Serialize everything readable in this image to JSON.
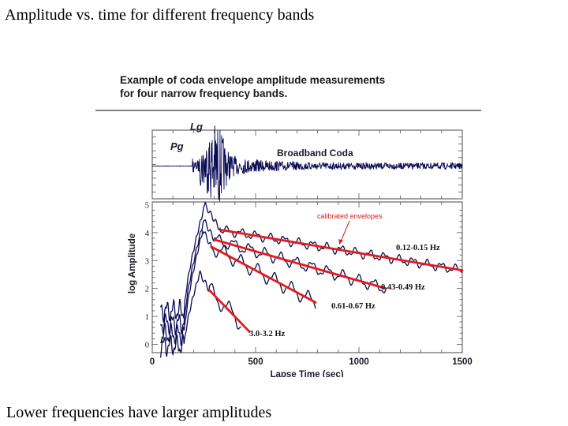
{
  "slide": {
    "title": "Amplitude vs. time for different frequency bands",
    "caption": "Lower frequencies have larger amplitudes"
  },
  "figure": {
    "title_line1": "Example of coda envelope amplitude measurements",
    "title_line2": "for four narrow frequency bands."
  },
  "chart_data": [
    {
      "type": "line",
      "panel": "top",
      "title": "Broadband Coda",
      "phase_labels": [
        "Lg",
        "Pg"
      ],
      "phase_arrivals_s": {
        "Pg": 200,
        "Lg": 290
      },
      "xlim": [
        0,
        1500
      ],
      "grid": false
    },
    {
      "type": "line",
      "panel": "bottom",
      "xlabel": "Lapse Time (sec)",
      "ylabel": "log Amplitude",
      "xlim": [
        0,
        1500
      ],
      "ylim": [
        -0.3,
        5.1
      ],
      "xticks": [
        "0",
        "500",
        "1000",
        "1500"
      ],
      "yticks": [
        "0",
        "1",
        "2",
        "3",
        "4",
        "5"
      ],
      "grid": false,
      "annotation": "calibrated envelopes",
      "colors": {
        "envelope": "#0b0b55",
        "fit": "#e31b1b",
        "annotation": "#d11f1f",
        "axes": "#555555"
      },
      "series": [
        {
          "name": "0.12-0.15 Hz",
          "peak": {
            "t": 255,
            "v": 5.0
          },
          "fit": {
            "t": [
              330,
              1500
            ],
            "v": [
              4.1,
              2.65
            ]
          },
          "envelope_end_s": 1500
        },
        {
          "name": "0.43-0.49 Hz",
          "peak": {
            "t": 250,
            "v": 4.45
          },
          "fit": {
            "t": [
              300,
              1130
            ],
            "v": [
              3.75,
              2.0
            ]
          },
          "envelope_end_s": 1130
        },
        {
          "name": "0.61-0.67 Hz",
          "peak": {
            "t": 245,
            "v": 4.1
          },
          "fit": {
            "t": [
              285,
              790
            ],
            "v": [
              3.5,
              1.5
            ]
          },
          "envelope_end_s": 790
        },
        {
          "name": "3.0-3.2 Hz",
          "peak": {
            "t": 230,
            "v": 2.55
          },
          "fit": {
            "t": [
              275,
              470
            ],
            "v": [
              1.95,
              0.45
            ]
          },
          "envelope_end_s": 430
        }
      ]
    }
  ]
}
